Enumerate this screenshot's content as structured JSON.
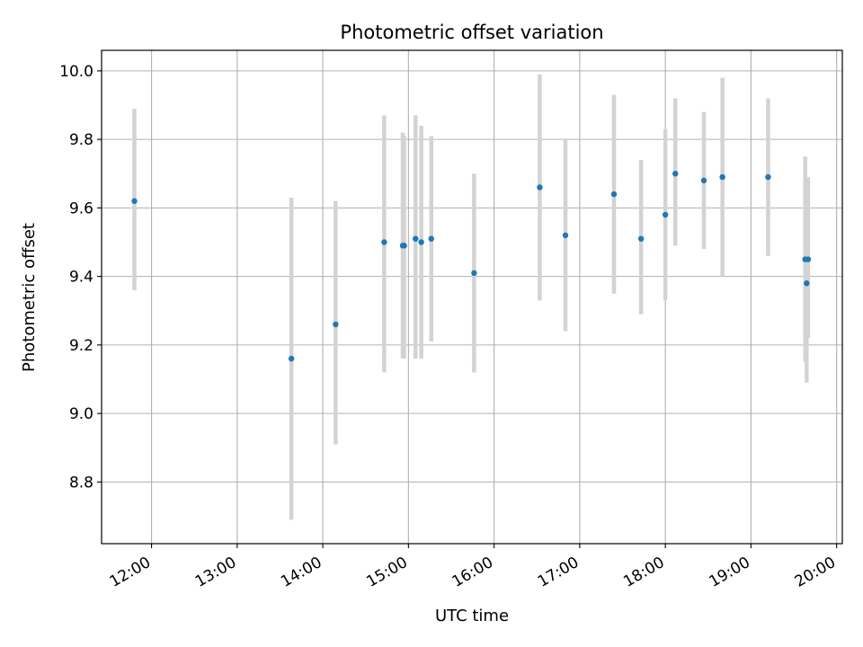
{
  "chart_data": {
    "type": "scatter",
    "title": "Photometric offset variation",
    "xlabel": "UTC time",
    "ylabel": "Photometric offset",
    "grid": true,
    "xlim": [
      "11:25",
      "20:04"
    ],
    "ylim": [
      8.62,
      10.06
    ],
    "x_ticks": [
      "12:00",
      "13:00",
      "14:00",
      "15:00",
      "16:00",
      "17:00",
      "18:00",
      "19:00",
      "20:00"
    ],
    "y_ticks": [
      "8.8",
      "9.0",
      "9.2",
      "9.4",
      "9.6",
      "9.8",
      "10.0"
    ],
    "marker_color": "#1f77b4",
    "errorbar_color": "#d3d3d3",
    "points": [
      {
        "x": "11:48",
        "y": 9.62,
        "ylow": 9.36,
        "yhigh": 9.89
      },
      {
        "x": "13:38",
        "y": 9.16,
        "ylow": 8.69,
        "yhigh": 9.63
      },
      {
        "x": "14:09",
        "y": 9.26,
        "ylow": 8.91,
        "yhigh": 9.62
      },
      {
        "x": "14:43",
        "y": 9.5,
        "ylow": 9.12,
        "yhigh": 9.87
      },
      {
        "x": "14:56",
        "y": 9.49,
        "ylow": 9.16,
        "yhigh": 9.82
      },
      {
        "x": "14:57",
        "y": 9.49,
        "ylow": 9.16,
        "yhigh": 9.81
      },
      {
        "x": "15:05",
        "y": 9.51,
        "ylow": 9.16,
        "yhigh": 9.87
      },
      {
        "x": "15:09",
        "y": 9.5,
        "ylow": 9.16,
        "yhigh": 9.84
      },
      {
        "x": "15:16",
        "y": 9.51,
        "ylow": 9.21,
        "yhigh": 9.81
      },
      {
        "x": "15:46",
        "y": 9.41,
        "ylow": 9.12,
        "yhigh": 9.7
      },
      {
        "x": "16:32",
        "y": 9.66,
        "ylow": 9.33,
        "yhigh": 9.99
      },
      {
        "x": "16:50",
        "y": 9.52,
        "ylow": 9.24,
        "yhigh": 9.8
      },
      {
        "x": "17:24",
        "y": 9.64,
        "ylow": 9.35,
        "yhigh": 9.93
      },
      {
        "x": "17:43",
        "y": 9.51,
        "ylow": 9.29,
        "yhigh": 9.74
      },
      {
        "x": "18:00",
        "y": 9.58,
        "ylow": 9.33,
        "yhigh": 9.83
      },
      {
        "x": "18:07",
        "y": 9.7,
        "ylow": 9.49,
        "yhigh": 9.92
      },
      {
        "x": "18:27",
        "y": 9.68,
        "ylow": 9.48,
        "yhigh": 9.88
      },
      {
        "x": "18:40",
        "y": 9.69,
        "ylow": 9.4,
        "yhigh": 9.98
      },
      {
        "x": "19:12",
        "y": 9.69,
        "ylow": 9.46,
        "yhigh": 9.92
      },
      {
        "x": "19:38",
        "y": 9.45,
        "ylow": 9.15,
        "yhigh": 9.75
      },
      {
        "x": "19:39",
        "y": 9.38,
        "ylow": 9.09,
        "yhigh": 9.68
      },
      {
        "x": "19:40",
        "y": 9.45,
        "ylow": 9.22,
        "yhigh": 9.69
      }
    ]
  }
}
